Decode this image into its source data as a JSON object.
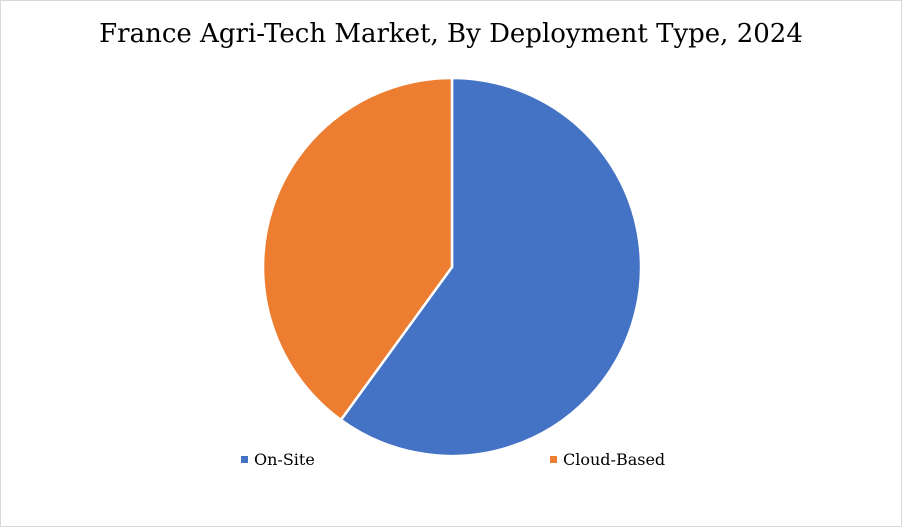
{
  "chart_data": {
    "type": "pie",
    "title": "France Agri-Tech Market, By Deployment Type, 2024",
    "categories": [
      "On-Site",
      "Cloud-Based"
    ],
    "values": [
      60,
      40
    ],
    "colors": [
      "#4472c4",
      "#ed7d31"
    ],
    "legend_position": "bottom"
  }
}
